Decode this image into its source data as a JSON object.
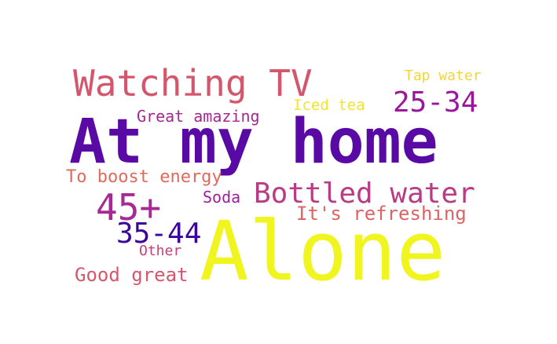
{
  "words": [
    {
      "text": "At my home",
      "color": "#5a0aa4",
      "weight": "bold"
    },
    {
      "text": "Alone",
      "color": "#f0f51f",
      "weight": "normal"
    },
    {
      "text": "Watching TV",
      "color": "#d4566d",
      "weight": "normal"
    },
    {
      "text": "Bottled water",
      "color": "#b93a85",
      "weight": "normal"
    },
    {
      "text": "25-34",
      "color": "#9a169f",
      "weight": "normal"
    },
    {
      "text": "45+",
      "color": "#a52a93",
      "weight": "normal"
    },
    {
      "text": "35-44",
      "color": "#3b049a",
      "weight": "normal"
    },
    {
      "text": "It's refreshing",
      "color": "#dd6464",
      "weight": "normal"
    },
    {
      "text": "Good great",
      "color": "#d5576c",
      "weight": "normal"
    },
    {
      "text": "To boost energy",
      "color": "#e16a5c",
      "weight": "normal"
    },
    {
      "text": "Great amazing",
      "color": "#a4288f",
      "weight": "normal"
    },
    {
      "text": "Soda",
      "color": "#9f1fa0",
      "weight": "normal"
    },
    {
      "text": "Other",
      "color": "#c4407a",
      "weight": "normal"
    },
    {
      "text": "Iced tea",
      "color": "#f2e52a",
      "weight": "normal"
    },
    {
      "text": "Tap water",
      "color": "#f3d43b",
      "weight": "normal"
    }
  ]
}
